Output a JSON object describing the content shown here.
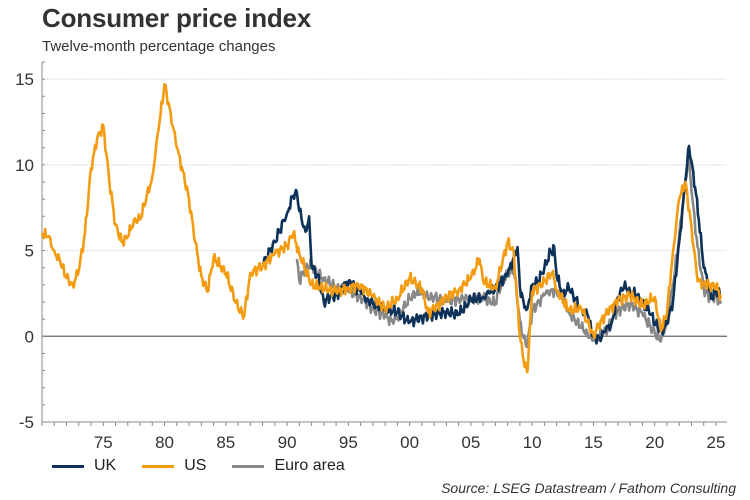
{
  "title": "Consumer price index",
  "subtitle": "Twelve-month percentage changes",
  "source": "Source: LSEG Datastream / Fathom Consulting",
  "chart_data": {
    "type": "line",
    "xlim": [
      1970,
      2025.9
    ],
    "ylim": [
      -5,
      16
    ],
    "yticks": [
      -5,
      0,
      5,
      10,
      15
    ],
    "ytick_labels": [
      "-5",
      "0",
      "5",
      "10",
      "15"
    ],
    "xticks": [
      1975,
      1980,
      1985,
      1990,
      1995,
      2000,
      2005,
      2010,
      2015,
      2020,
      2025
    ],
    "xtick_labels": [
      "75",
      "80",
      "85",
      "90",
      "95",
      "00",
      "05",
      "10",
      "15",
      "20",
      "25"
    ],
    "grid": true,
    "series": [
      {
        "name": "UK",
        "color": "#0d3158",
        "x": [
          1988,
          1989,
          1990,
          1990.5,
          1990.8,
          1991,
          1991.5,
          1991.8,
          1992,
          1992.5,
          1993,
          1993.5,
          1994,
          1995,
          1996,
          1996.5,
          1997,
          1998,
          1999,
          2000,
          2000.5,
          2001,
          2002,
          2003,
          2004,
          2005,
          2006,
          2006.5,
          2007,
          2008,
          2008.5,
          2008.8,
          2009,
          2009.3,
          2009.6,
          2010,
          2010.5,
          2011,
          2011.5,
          2011.8,
          2012,
          2012.5,
          2013,
          2014,
          2014.5,
          2015,
          2015.5,
          2016,
          2016.5,
          2017,
          2017.5,
          2018,
          2018.5,
          2019,
          2019.5,
          2020,
          2020.5,
          2021,
          2021.5,
          2022,
          2022.5,
          2022.8,
          2023,
          2023.3,
          2023.6,
          2024,
          2024.3,
          2024.6,
          2025,
          2025.4
        ],
        "y": [
          4.2,
          5.5,
          7.2,
          8.2,
          8.4,
          7.3,
          6.1,
          7.0,
          4.1,
          3.5,
          2.0,
          2.3,
          2.4,
          3.2,
          2.6,
          2.2,
          1.9,
          1.6,
          1.4,
          0.8,
          1.0,
          1.1,
          1.3,
          1.4,
          1.3,
          2.1,
          2.3,
          2.5,
          2.8,
          3.6,
          4.6,
          5.2,
          2.9,
          2.0,
          1.6,
          3.0,
          3.2,
          4.0,
          4.9,
          5.2,
          3.5,
          2.5,
          2.8,
          1.6,
          1.3,
          0.0,
          -0.1,
          0.3,
          0.8,
          2.3,
          2.9,
          2.6,
          2.4,
          1.8,
          1.6,
          0.8,
          0.3,
          0.7,
          2.1,
          5.5,
          9.0,
          11.1,
          10.2,
          8.7,
          6.8,
          4.0,
          3.2,
          2.2,
          2.6,
          2.5
        ]
      },
      {
        "name": "US",
        "color": "#f39c12",
        "x": [
          1970,
          1970.5,
          1971,
          1971.5,
          1972,
          1972.5,
          1973,
          1973.5,
          1974,
          1974.5,
          1975,
          1975.5,
          1976,
          1976.5,
          1977,
          1977.5,
          1978,
          1978.5,
          1979,
          1979.5,
          1980,
          1980.5,
          1981,
          1981.5,
          1982,
          1982.5,
          1983,
          1983.5,
          1984,
          1985,
          1986,
          1986.5,
          1987,
          1988,
          1989,
          1990,
          1990.5,
          1991,
          1992,
          1993,
          1994,
          1995,
          1996,
          1997,
          1998,
          1999,
          2000,
          2001,
          2001.5,
          2002,
          2003,
          2004,
          2005,
          2005.7,
          2006,
          2007,
          2008,
          2008.5,
          2009,
          2009.3,
          2009.6,
          2010,
          2011,
          2011.7,
          2012,
          2013,
          2014,
          2015,
          2016,
          2017,
          2018,
          2019,
          2020,
          2020.5,
          2021,
          2021.5,
          2022,
          2022.5,
          2023,
          2023.5,
          2024,
          2024.5,
          2025,
          2025.4
        ],
        "y": [
          6.0,
          5.8,
          5.0,
          4.3,
          3.4,
          3.0,
          3.8,
          6.0,
          9.8,
          11.5,
          12.3,
          9.0,
          6.5,
          5.5,
          5.8,
          6.8,
          6.8,
          8.0,
          9.3,
          12.0,
          14.7,
          13.0,
          11.0,
          9.6,
          8.0,
          5.5,
          3.5,
          2.6,
          4.6,
          3.7,
          1.6,
          1.2,
          3.7,
          4.1,
          4.8,
          5.3,
          6.0,
          4.8,
          3.0,
          2.8,
          2.6,
          2.8,
          3.0,
          2.3,
          1.6,
          2.2,
          3.4,
          2.8,
          1.4,
          1.6,
          2.3,
          2.7,
          3.4,
          4.5,
          3.2,
          2.8,
          5.5,
          4.9,
          0.0,
          -1.4,
          -2.1,
          2.6,
          3.2,
          3.8,
          2.7,
          1.5,
          1.6,
          0.1,
          1.3,
          2.1,
          2.4,
          1.8,
          2.3,
          0.3,
          1.4,
          5.0,
          8.0,
          9.0,
          6.4,
          3.2,
          3.1,
          3.0,
          2.9,
          2.4
        ]
      },
      {
        "name": "Euro area",
        "color": "#888888",
        "x": [
          1990.8,
          1991,
          1991.5,
          1992,
          1992.5,
          1993,
          1994,
          1995,
          1996,
          1997,
          1998,
          1998.5,
          1999,
          2000,
          2000.5,
          2001,
          2001.5,
          2002,
          2003,
          2004,
          2005,
          2006,
          2007,
          2007.5,
          2008,
          2008.5,
          2009,
          2009.3,
          2009.6,
          2010,
          2011,
          2011.5,
          2012,
          2012.5,
          2013,
          2014,
          2014.5,
          2015,
          2016,
          2017,
          2018,
          2019,
          2020,
          2020.5,
          2021,
          2021.5,
          2022,
          2022.5,
          2022.8,
          2023,
          2023.5,
          2024,
          2024.5,
          2025,
          2025.4
        ],
        "y": [
          4.5,
          3.2,
          4.0,
          4.2,
          3.6,
          3.4,
          2.8,
          2.6,
          2.3,
          1.6,
          1.2,
          0.9,
          1.1,
          2.2,
          2.5,
          2.6,
          2.2,
          2.3,
          2.0,
          2.2,
          2.2,
          2.2,
          1.9,
          3.1,
          3.6,
          4.0,
          0.9,
          -0.1,
          -0.6,
          1.5,
          2.4,
          2.7,
          2.6,
          2.2,
          1.4,
          0.5,
          0.2,
          -0.2,
          0.3,
          1.5,
          1.9,
          1.3,
          0.2,
          -0.3,
          0.9,
          3.0,
          5.8,
          9.1,
          10.6,
          8.5,
          5.2,
          2.8,
          2.2,
          2.4,
          1.9
        ]
      }
    ]
  }
}
